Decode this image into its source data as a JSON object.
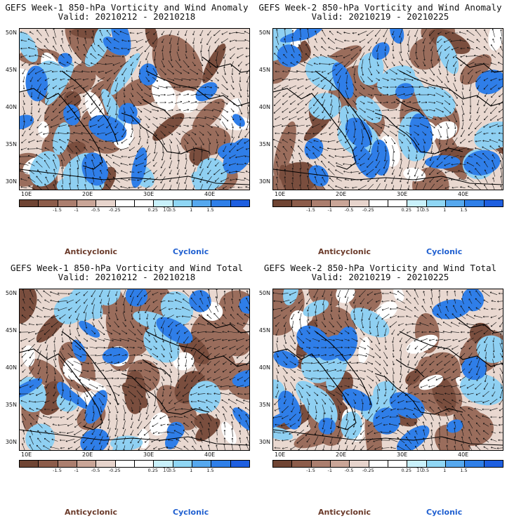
{
  "panels": [
    {
      "title": "GEFS Week-1 850-hPa Vorticity and Wind Anomaly",
      "valid": "Valid: 20210212 - 20210218"
    },
    {
      "title": "GEFS Week-2 850-hPa Vorticity and Wind Anomaly",
      "valid": "Valid: 20210219 - 20210225"
    },
    {
      "title": "GEFS Week-1 850-hPa Vorticity and Wind Total",
      "valid": "Valid: 20210212 - 20210218"
    },
    {
      "title": "GEFS Week-2 850-hPa Vorticity and Wind Total",
      "valid": "Valid: 20210219 - 20210225"
    }
  ],
  "axes": {
    "lat_labels": [
      "50N",
      "45N",
      "40N",
      "35N",
      "30N"
    ],
    "lon_labels": [
      "10E",
      "20E",
      "30E",
      "40E"
    ]
  },
  "colorbar": {
    "labels": [
      "-1.5",
      "-1",
      "-0.5",
      "-0.25",
      "0.25",
      "0.5",
      "1",
      "1.5"
    ],
    "scale_text": "10",
    "colors": [
      "#6f4433",
      "#8c5c4a",
      "#ab7e6e",
      "#c9a597",
      "#e7d4cc",
      "#ffffff",
      "#ffffff",
      "#c9f1fb",
      "#8fd6f4",
      "#56a8ee",
      "#2f7fe8",
      "#1e5fe0"
    ]
  },
  "legend": {
    "anticyclonic": "Anticyclonic",
    "cyclonic": "Cyclonic"
  },
  "colors": {
    "brown": "#7d5242",
    "blue": "#2f7ee8",
    "lightblue": "#8fd0f2"
  }
}
